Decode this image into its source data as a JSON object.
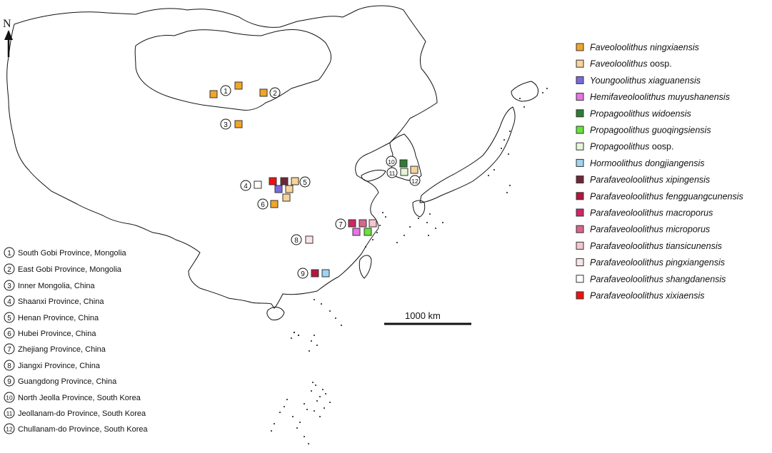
{
  "north_label": "N",
  "scale_label": "1000 km",
  "legend": [
    {
      "genus": "Faveoloolithus",
      "species": "ningxiaensis",
      "color": "#f0a52a"
    },
    {
      "genus": "Faveoloolithus",
      "species": "oosp.",
      "color": "#f8d49a",
      "roman_species": true
    },
    {
      "genus": "Youngoolithus",
      "species": "xiaguanensis",
      "color": "#7b68e0"
    },
    {
      "genus": "Hemifaveoloolithus",
      "species": "muyushanensis",
      "color": "#e873e8"
    },
    {
      "genus": "Propagoolithus",
      "species": "widoensis",
      "color": "#2e7d32"
    },
    {
      "genus": "Propagoolithus",
      "species": "guoqingsiensis",
      "color": "#66e43a"
    },
    {
      "genus": "Propagoolithus",
      "species": "oosp.",
      "color": "#e4f7d6",
      "roman_species": true
    },
    {
      "genus": "Hormoolithus",
      "species": "dongjiangensis",
      "color": "#9fd3ef"
    },
    {
      "genus": "Parafaveoloolithus",
      "species": "xipingensis",
      "color": "#6e2738"
    },
    {
      "genus": "Parafaveoloolithus",
      "species": "fengguangcunensis",
      "color": "#b5163c"
    },
    {
      "genus": "Parafaveoloolithus",
      "species": "macroporus",
      "color": "#d1246a"
    },
    {
      "genus": "Parafaveoloolithus",
      "species": "microporus",
      "color": "#d6668e"
    },
    {
      "genus": "Parafaveoloolithus",
      "species": "tiansicunensis",
      "color": "#f6c6cf"
    },
    {
      "genus": "Parafaveoloolithus",
      "species": "pingxiangensis",
      "color": "#fbe4e6"
    },
    {
      "genus": "Parafaveoloolithus",
      "species": "shangdanensis",
      "color": "#ffffff"
    },
    {
      "genus": "Parafaveoloolithus",
      "species": "xixiaensis",
      "color": "#ee1111"
    }
  ],
  "locations": [
    {
      "num": "1",
      "label": "South Gobi Province, Mongolia"
    },
    {
      "num": "2",
      "label": "East Gobi Province, Mongolia"
    },
    {
      "num": "3",
      "label": "Inner Mongolia, China"
    },
    {
      "num": "4",
      "label": "Shaanxi Province, China"
    },
    {
      "num": "5",
      "label": "Henan Province, China"
    },
    {
      "num": "6",
      "label": "Hubei Province, China"
    },
    {
      "num": "7",
      "label": "Zhejiang Province, China"
    },
    {
      "num": "8",
      "label": "Jiangxi Province, China"
    },
    {
      "num": "9",
      "label": "Guangdong Province, China"
    },
    {
      "num": "10",
      "label": "North Jeolla Province, South Korea"
    },
    {
      "num": "11",
      "label": "Jeollanam-do Province, South Korea"
    },
    {
      "num": "12",
      "label": "Chullanam-do Province, South Korea"
    }
  ]
}
